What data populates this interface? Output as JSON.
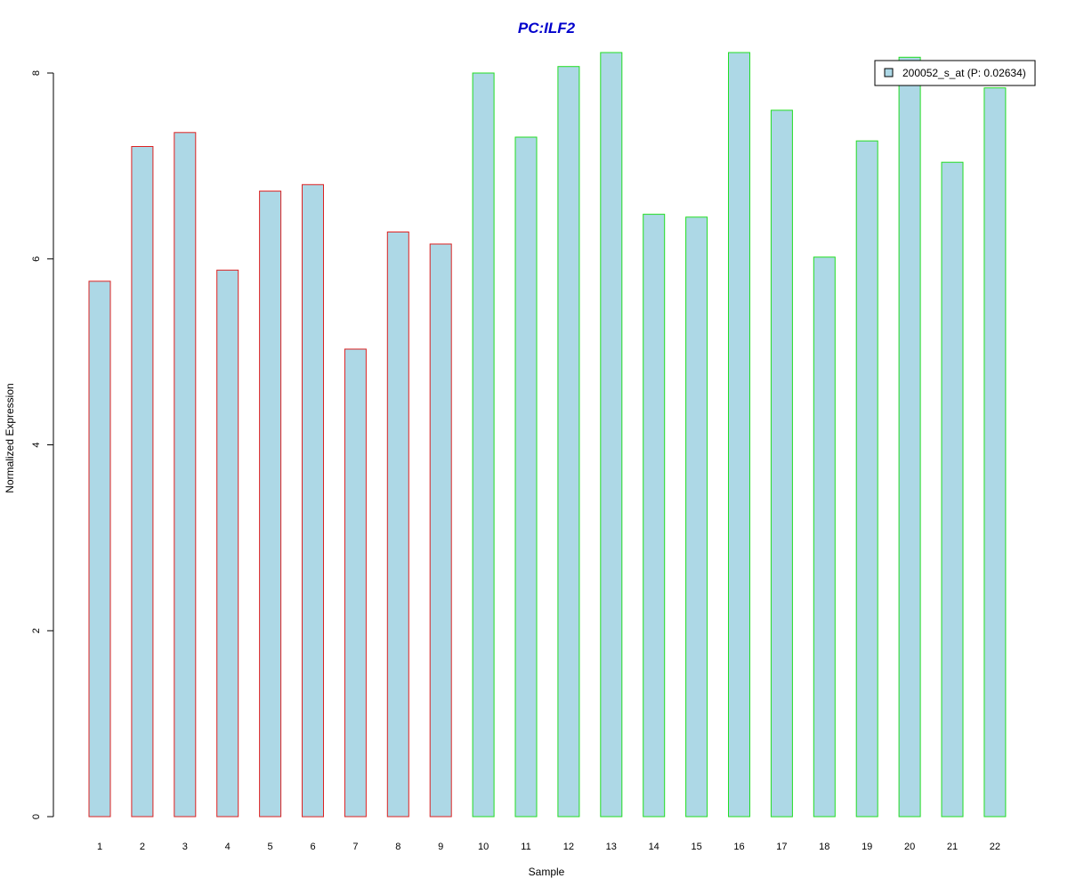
{
  "chart_data": {
    "type": "bar",
    "title": "PC:ILF2",
    "xlabel": "Sample",
    "ylabel": "Normalized Expression",
    "categories": [
      "1",
      "2",
      "3",
      "4",
      "5",
      "6",
      "7",
      "8",
      "9",
      "10",
      "11",
      "12",
      "13",
      "14",
      "15",
      "16",
      "17",
      "18",
      "19",
      "20",
      "21",
      "22"
    ],
    "series": [
      {
        "name": "200052_s_at (P: 0.02634)",
        "values": [
          5.76,
          7.21,
          7.36,
          5.88,
          6.73,
          6.8,
          5.03,
          6.29,
          6.16,
          8.0,
          7.31,
          8.07,
          8.22,
          6.48,
          6.45,
          8.22,
          7.6,
          6.02,
          7.27,
          8.17,
          7.04,
          7.84
        ]
      }
    ],
    "groups": [
      {
        "from": 1,
        "to": 9,
        "border_color": "#dd2222"
      },
      {
        "from": 10,
        "to": 22,
        "border_color": "#22dd22"
      }
    ],
    "ylim": [
      0,
      8
    ],
    "yticks": [
      0,
      2,
      4,
      6,
      8
    ],
    "grid": false,
    "legend_position": "top-right",
    "colors": {
      "bar_fill": "#add8e6",
      "title": "#0000cc",
      "axis": "#000000"
    }
  }
}
